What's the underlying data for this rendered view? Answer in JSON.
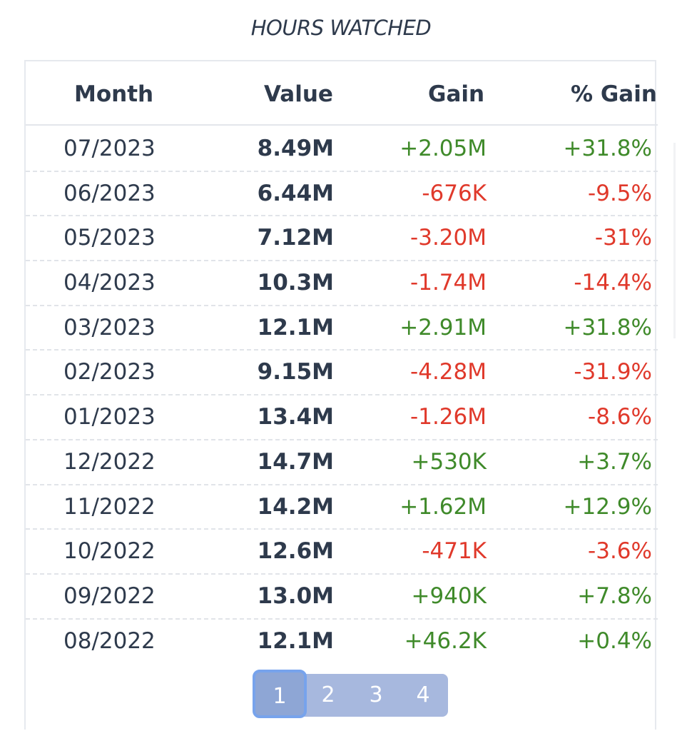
{
  "title": "HOURS WATCHED",
  "table": {
    "headers": {
      "month": "Month",
      "value": "Value",
      "gain": "Gain",
      "pct_gain": "% Gain"
    },
    "rows": [
      {
        "month": "07/2023",
        "value": "8.49M",
        "gain": "+2.05M",
        "pct": "+31.8%",
        "trend": "pos"
      },
      {
        "month": "06/2023",
        "value": "6.44M",
        "gain": "-676K",
        "pct": "-9.5%",
        "trend": "neg"
      },
      {
        "month": "05/2023",
        "value": "7.12M",
        "gain": "-3.20M",
        "pct": "-31%",
        "trend": "neg"
      },
      {
        "month": "04/2023",
        "value": "10.3M",
        "gain": "-1.74M",
        "pct": "-14.4%",
        "trend": "neg"
      },
      {
        "month": "03/2023",
        "value": "12.1M",
        "gain": "+2.91M",
        "pct": "+31.8%",
        "trend": "pos"
      },
      {
        "month": "02/2023",
        "value": "9.15M",
        "gain": "-4.28M",
        "pct": "-31.9%",
        "trend": "neg"
      },
      {
        "month": "01/2023",
        "value": "13.4M",
        "gain": "-1.26M",
        "pct": "-8.6%",
        "trend": "neg"
      },
      {
        "month": "12/2022",
        "value": "14.7M",
        "gain": "+530K",
        "pct": "+3.7%",
        "trend": "pos"
      },
      {
        "month": "11/2022",
        "value": "14.2M",
        "gain": "+1.62M",
        "pct": "+12.9%",
        "trend": "pos"
      },
      {
        "month": "10/2022",
        "value": "12.6M",
        "gain": "-471K",
        "pct": "-3.6%",
        "trend": "neg"
      },
      {
        "month": "09/2022",
        "value": "13.0M",
        "gain": "+940K",
        "pct": "+7.8%",
        "trend": "pos"
      },
      {
        "month": "08/2022",
        "value": "12.1M",
        "gain": "+46.2K",
        "pct": "+0.4%",
        "trend": "pos"
      }
    ]
  },
  "pagination": {
    "pages": [
      "1",
      "2",
      "3",
      "4"
    ],
    "active": "1"
  },
  "colors": {
    "positive": "#3f8a2a",
    "negative": "#e0392b",
    "text": "#2e3a4c",
    "pager_bg": "#a7b8de",
    "pager_active": "#8ea6d5"
  }
}
